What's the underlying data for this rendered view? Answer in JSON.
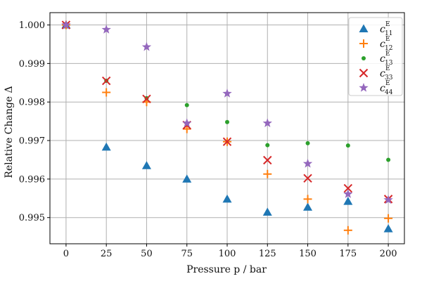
{
  "chart_data": {
    "type": "scatter",
    "title": "",
    "xlabel": "Pressure p / bar",
    "ylabel": "Relative Change Δ",
    "xlim": [
      -10,
      210
    ],
    "ylim": [
      0.99432,
      1.00032
    ],
    "xticks": [
      0,
      25,
      50,
      75,
      100,
      125,
      150,
      175,
      200
    ],
    "yticks": [
      0.995,
      0.996,
      0.997,
      0.998,
      0.999,
      1.0
    ],
    "ytick_labels": [
      "0.995",
      "0.996",
      "0.997",
      "0.998",
      "0.999",
      "1.000"
    ],
    "grid": true,
    "legend_position": "top-right",
    "series": [
      {
        "name": "c11E",
        "legend_main": "c",
        "legend_sup": "E",
        "legend_sub": "11",
        "marker": "triangle",
        "color": "#1f77b4",
        "x": [
          0,
          25,
          50,
          75,
          100,
          125,
          150,
          175,
          200
        ],
        "y": [
          1.0,
          0.99683,
          0.99635,
          0.996,
          0.99548,
          0.99514,
          0.99527,
          0.99542,
          0.99471
        ]
      },
      {
        "name": "c12E",
        "legend_main": "c",
        "legend_sup": "E",
        "legend_sub": "12",
        "marker": "plus",
        "color": "#ff7f0e",
        "x": [
          0,
          25,
          50,
          75,
          100,
          125,
          150,
          175,
          200
        ],
        "y": [
          1.0,
          0.99825,
          0.998,
          0.9973,
          0.99697,
          0.99613,
          0.99548,
          0.99467,
          0.99498
        ]
      },
      {
        "name": "c13E",
        "legend_main": "c",
        "legend_sup": "E",
        "legend_sub": "13",
        "marker": "dot",
        "color": "#2ca02c",
        "x": [
          0,
          25,
          50,
          75,
          100,
          125,
          150,
          175,
          200
        ],
        "y": [
          1.0,
          0.99855,
          0.9981,
          0.99792,
          0.99748,
          0.99688,
          0.99693,
          0.99687,
          0.9965
        ]
      },
      {
        "name": "c33E",
        "legend_main": "c",
        "legend_sup": "E",
        "legend_sub": "33",
        "marker": "x",
        "color": "#d62728",
        "x": [
          0,
          25,
          50,
          75,
          100,
          125,
          150,
          175,
          200
        ],
        "y": [
          1.0,
          0.99855,
          0.99808,
          0.9974,
          0.99697,
          0.99649,
          0.99602,
          0.99576,
          0.99548
        ]
      },
      {
        "name": "c44E",
        "legend_main": "c",
        "legend_sup": "E",
        "legend_sub": "44",
        "marker": "star",
        "color": "#9467bd",
        "x": [
          0,
          25,
          50,
          75,
          100,
          125,
          150,
          175,
          200
        ],
        "y": [
          1.0,
          0.99988,
          0.99943,
          0.99745,
          0.99822,
          0.99745,
          0.9964,
          0.99561,
          0.99546
        ]
      }
    ]
  }
}
